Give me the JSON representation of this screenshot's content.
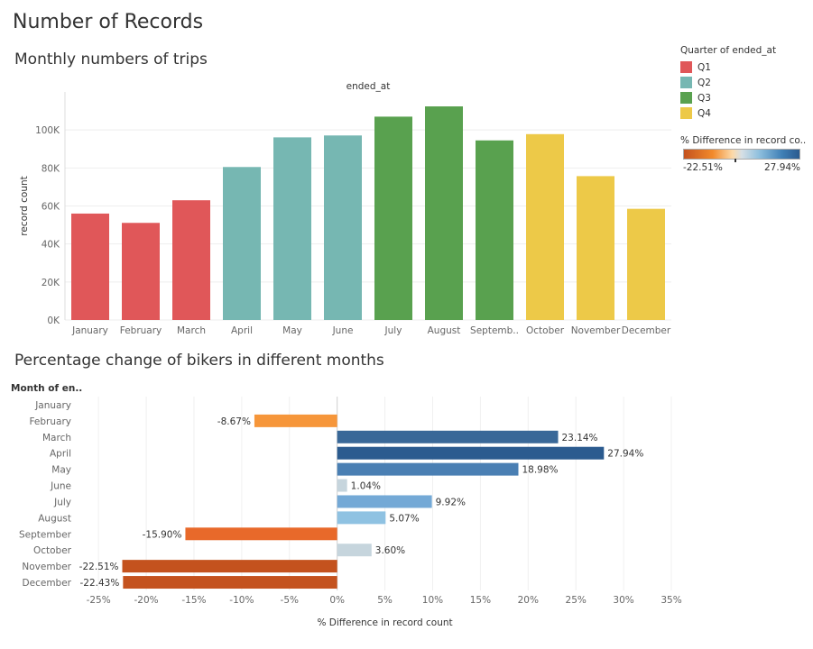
{
  "page": {
    "title": "Number of Records",
    "subtitle1": "Monthly numbers of trips",
    "subtitle2": "Percentage change of bikers in different months"
  },
  "legend": {
    "quarter_title": "Quarter of ended_at",
    "quarters": [
      {
        "label": "Q1",
        "color": "#e05759"
      },
      {
        "label": "Q2",
        "color": "#76b7b2"
      },
      {
        "label": "Q3",
        "color": "#59a14f"
      },
      {
        "label": "Q4",
        "color": "#edc948"
      }
    ],
    "gradient_title": "% Difference in record co..",
    "gradient_min": "-22.51%",
    "gradient_max": "27.94%"
  },
  "chart_data": [
    {
      "type": "bar",
      "title": "Monthly numbers of trips",
      "xlabel": "ended_at",
      "ylabel": "record count",
      "ylim": [
        0,
        120000
      ],
      "yticks": [
        0,
        20000,
        40000,
        60000,
        80000,
        100000
      ],
      "ytick_labels": [
        "0K",
        "20K",
        "40K",
        "60K",
        "80K",
        "100K"
      ],
      "categories": [
        "January",
        "February",
        "March",
        "April",
        "May",
        "June",
        "July",
        "August",
        "September",
        "October",
        "November",
        "December"
      ],
      "category_labels": [
        "January",
        "February",
        "March",
        "April",
        "May",
        "June",
        "July",
        "August",
        "Septemb..",
        "October",
        "November",
        "December"
      ],
      "values": [
        56000,
        51100,
        63000,
        80500,
        96100,
        97100,
        107000,
        112400,
        94500,
        97800,
        75700,
        58500
      ],
      "quarters": [
        "Q1",
        "Q1",
        "Q1",
        "Q2",
        "Q2",
        "Q2",
        "Q3",
        "Q3",
        "Q3",
        "Q4",
        "Q4",
        "Q4"
      ],
      "legend": "right"
    },
    {
      "type": "bar",
      "orientation": "horizontal",
      "title": "Percentage change of bikers in different months",
      "xlabel": "% Difference in record count",
      "ylabel": "Month of en..",
      "xlim": [
        -27,
        35
      ],
      "xticks": [
        -25,
        -20,
        -15,
        -10,
        -5,
        0,
        5,
        10,
        15,
        20,
        25,
        30,
        35
      ],
      "xtick_labels": [
        "-25%",
        "-20%",
        "-15%",
        "-10%",
        "-5%",
        "0%",
        "5%",
        "10%",
        "15%",
        "20%",
        "25%",
        "30%",
        "35%"
      ],
      "categories": [
        "January",
        "February",
        "March",
        "April",
        "May",
        "June",
        "July",
        "August",
        "September",
        "October",
        "November",
        "December"
      ],
      "values": [
        null,
        -8.67,
        23.14,
        27.94,
        18.98,
        1.04,
        9.92,
        5.07,
        -15.9,
        3.6,
        -22.51,
        -22.43
      ],
      "value_labels": [
        "",
        "-8.67%",
        "23.14%",
        "27.94%",
        "18.98%",
        "1.04%",
        "9.92%",
        "5.07%",
        "-15.90%",
        "3.60%",
        "-22.51%",
        "-22.43%"
      ]
    }
  ]
}
